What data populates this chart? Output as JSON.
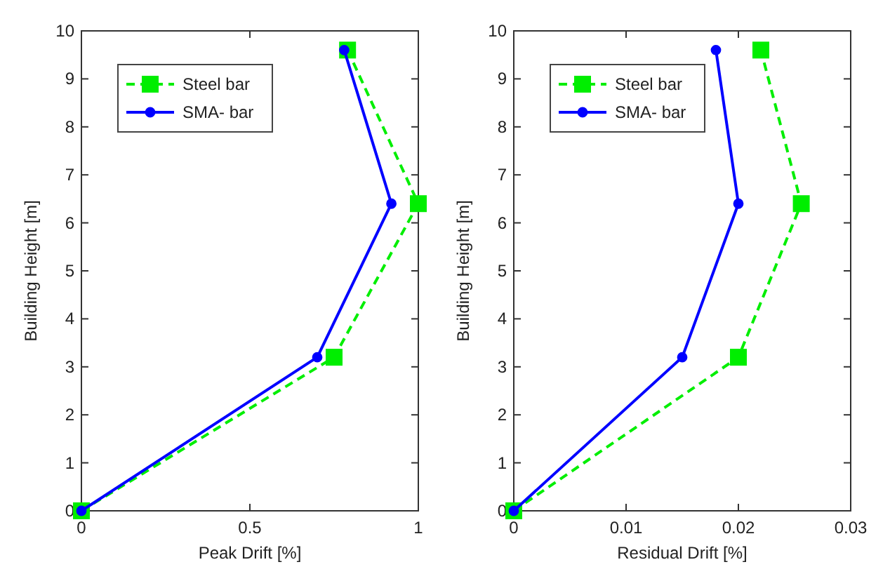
{
  "chart_data": [
    {
      "type": "line",
      "xlabel": "Peak Drift [%]",
      "ylabel": "Building Height [m]",
      "xlim": [
        0,
        1
      ],
      "xticks": [
        0,
        0.5,
        1
      ],
      "ylim": [
        0,
        10
      ],
      "yticks": [
        0,
        1,
        2,
        3,
        4,
        5,
        6,
        7,
        8,
        9,
        10
      ],
      "grid": false,
      "legend": "top left",
      "series": [
        {
          "name": "Steel bar",
          "color": "#00ee00",
          "marker": "square",
          "line_style": "dashed",
          "x": [
            0,
            0.75,
            1.0,
            0.79
          ],
          "values": [
            0,
            3.2,
            6.4,
            9.6
          ]
        },
        {
          "name": "SMA- bar",
          "color": "#0000ff",
          "marker": "circle",
          "line_style": "solid",
          "x": [
            0,
            0.7,
            0.92,
            0.78
          ],
          "values": [
            0,
            3.2,
            6.4,
            9.6
          ]
        }
      ]
    },
    {
      "type": "line",
      "xlabel": "Residual Drift [%]",
      "ylabel": "Building Height [m]",
      "xlim": [
        0,
        0.03
      ],
      "xticks": [
        0,
        0.01,
        0.02,
        0.03
      ],
      "ylim": [
        0,
        10
      ],
      "yticks": [
        0,
        1,
        2,
        3,
        4,
        5,
        6,
        7,
        8,
        9,
        10
      ],
      "grid": false,
      "legend": "top left",
      "series": [
        {
          "name": "Steel bar",
          "color": "#00ee00",
          "marker": "square",
          "line_style": "dashed",
          "x": [
            0,
            0.02,
            0.0256,
            0.022
          ],
          "values": [
            0,
            3.2,
            6.4,
            9.6
          ]
        },
        {
          "name": "SMA- bar",
          "color": "#0000ff",
          "marker": "circle",
          "line_style": "solid",
          "x": [
            0,
            0.015,
            0.02,
            0.018
          ],
          "values": [
            0,
            3.2,
            6.4,
            9.6
          ]
        }
      ]
    }
  ]
}
